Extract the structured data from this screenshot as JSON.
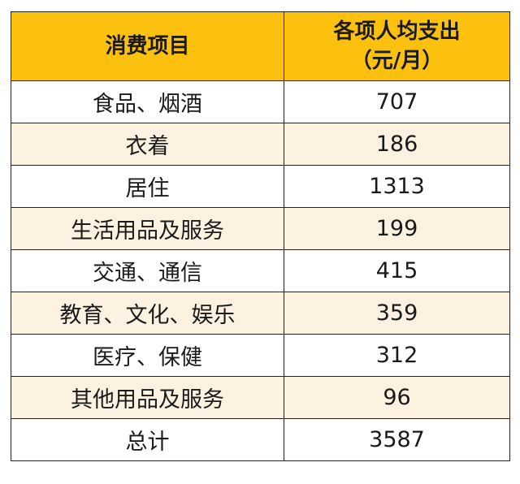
{
  "colors": {
    "header_bg": "#fcc10f",
    "stripe_bg": "#fdf1e2",
    "row_bg": "#ffffff",
    "border": "#222222"
  },
  "table": {
    "headers": {
      "category": "消费项目",
      "amount_line1": "各项人均支出",
      "amount_line2": "（元/月）"
    },
    "rows": [
      {
        "category": "食品、烟酒",
        "amount": "707"
      },
      {
        "category": "衣着",
        "amount": "186"
      },
      {
        "category": "居住",
        "amount": "1313"
      },
      {
        "category": "生活用品及服务",
        "amount": "199"
      },
      {
        "category": "交通、通信",
        "amount": "415"
      },
      {
        "category": "教育、文化、娱乐",
        "amount": "359"
      },
      {
        "category": "医疗、保健",
        "amount": "312"
      },
      {
        "category": "其他用品及服务",
        "amount": "96"
      },
      {
        "category": "总计",
        "amount": "3587"
      }
    ]
  }
}
